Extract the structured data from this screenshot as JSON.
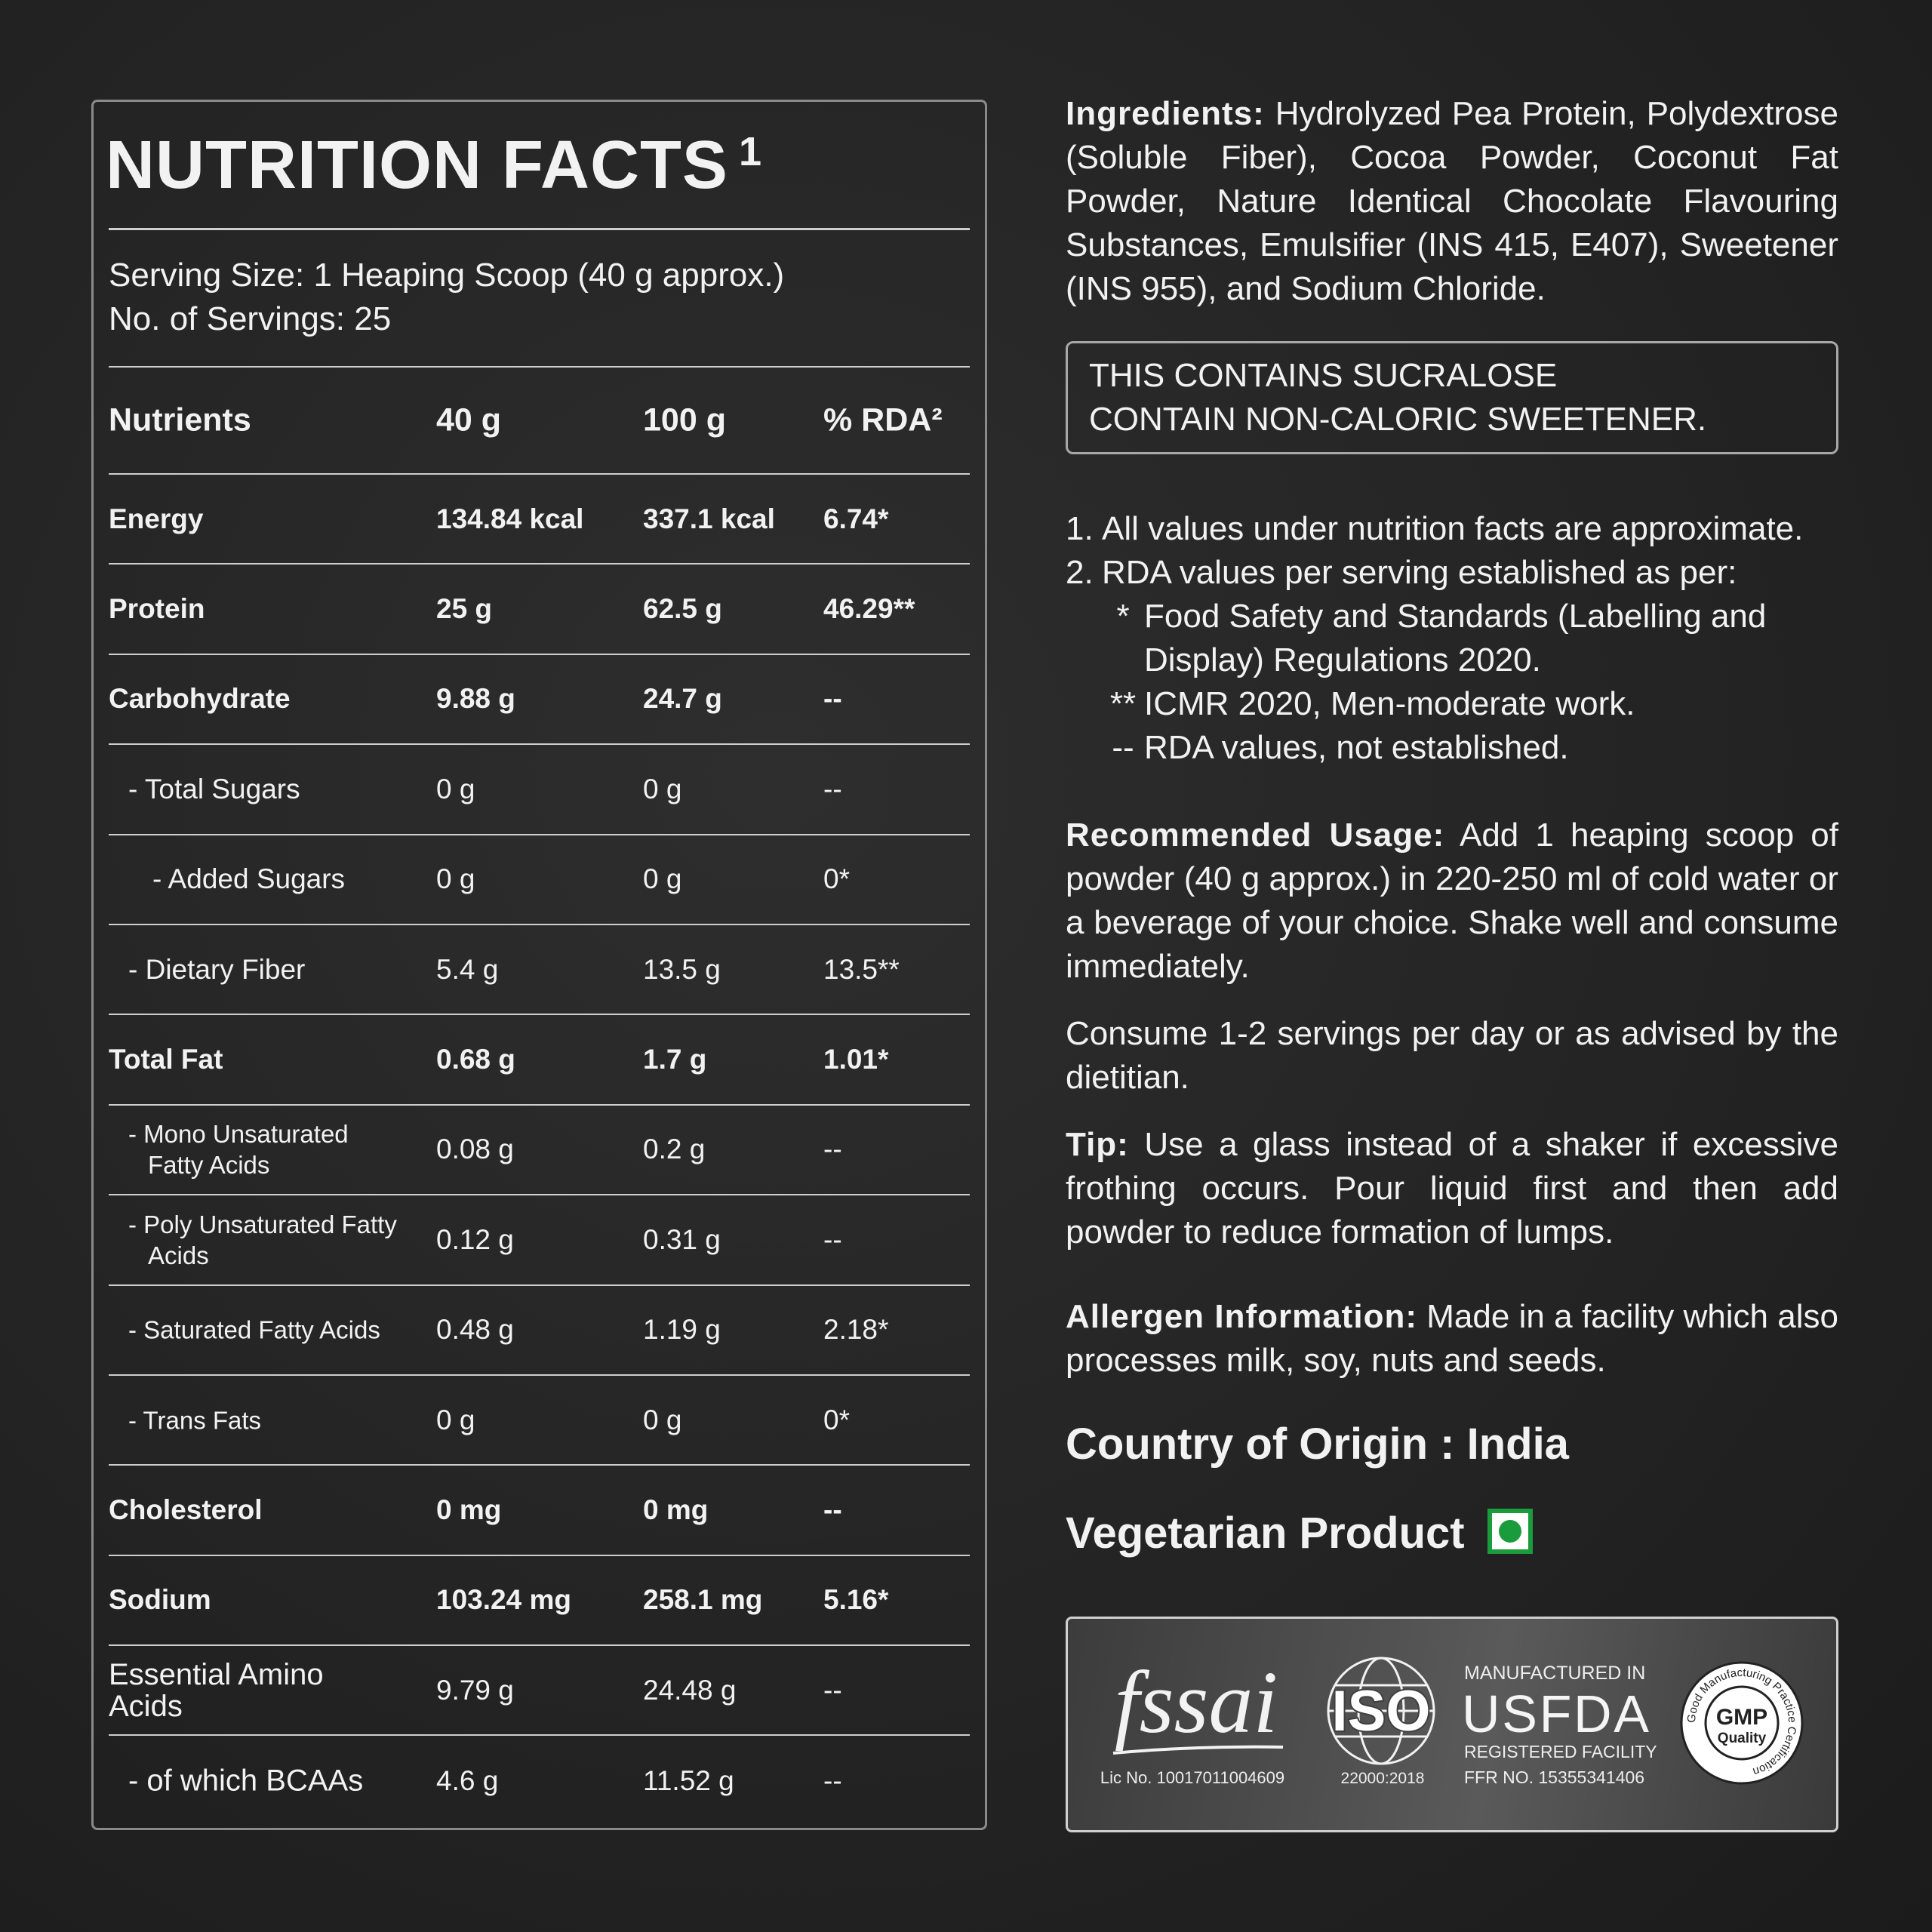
{
  "nutrition": {
    "title": "NUTRITION FACTS",
    "title_note": "1",
    "serving_size": "Serving Size: 1 Heaping Scoop (40 g approx.)",
    "servings": "No. of Servings: 25",
    "header": [
      "Nutrients",
      "40 g",
      "100 g",
      "% RDA²"
    ],
    "rows": [
      [
        "Energy",
        "134.84 kcal",
        "337.1 kcal",
        "6.74*"
      ],
      [
        "Protein",
        "25 g",
        "62.5 g",
        "46.29**"
      ],
      [
        "Carbohydrate",
        "9.88 g",
        "24.7 g",
        "--"
      ],
      [
        "- Total Sugars",
        "0 g",
        "0 g",
        "--"
      ],
      [
        "- Added Sugars",
        "0 g",
        "0 g",
        "0*"
      ],
      [
        "- Dietary Fiber",
        "5.4 g",
        "13.5 g",
        "13.5**"
      ],
      [
        "Total Fat",
        "0.68 g",
        "1.7 g",
        "1.01*"
      ],
      [
        "- Mono Unsaturated Fatty Acids",
        "0.08 g",
        "0.2 g",
        "--"
      ],
      [
        "- Poly Unsaturated Fatty Acids",
        "0.12 g",
        "0.31 g",
        "--"
      ],
      [
        "- Saturated Fatty Acids",
        "0.48 g",
        "1.19 g",
        "2.18*"
      ],
      [
        "- Trans Fats",
        "0 g",
        "0 g",
        "0*"
      ],
      [
        "Cholesterol",
        "0 mg",
        "0 mg",
        "--"
      ],
      [
        "Sodium",
        "103.24 mg",
        "258.1 mg",
        "5.16*"
      ],
      [
        "Essential Amino Acids",
        "9.79 g",
        "24.48 g",
        "--"
      ],
      [
        "- of which BCAAs",
        "4.6 g",
        "11.52 g",
        "--"
      ]
    ]
  },
  "info": {
    "ingredients": {
      "label": "Ingredients:",
      "text": "Hydrolyzed Pea Protein, Polydextrose (Soluble Fiber), Cocoa Powder, Coconut Fat Powder, Nature Identical Chocolate Flavouring Substances, Emulsifier (INS 415, E407), Sweetener (INS 955), and Sodium Chloride."
    },
    "warning": [
      "THIS CONTAINS SUCRALOSE",
      "CONTAIN NON-CALORIC SWEETENER."
    ],
    "notes": [
      {
        "marker": "1.",
        "text": "All values under nutrition facts are approximate."
      },
      {
        "marker": "2.",
        "text": "RDA values per serving established as per:"
      }
    ],
    "rda_sources": [
      {
        "marker": "*",
        "text": "Food Safety and Standards (Labelling and Display) Regulations 2020."
      },
      {
        "marker": "**",
        "text": "ICMR 2020, Men-moderate work."
      },
      {
        "marker": "--",
        "text": "RDA values, not established."
      }
    ],
    "usage": {
      "label": "Recommended Usage:",
      "text": "Add 1 heaping scoop of powder (40 g approx.) in 220-250 ml of cold water or a beverage of your choice. Shake well and consume immediately."
    },
    "servings_advice": "Consume 1-2 servings per day or as advised by the dietitian.",
    "tip": {
      "label": "Tip:",
      "text": "Use a glass instead of a shaker if excessive frothing occurs. Pour liquid first and then add powder to reduce formation of lumps."
    },
    "allergen": {
      "label": "Allergen Information:",
      "text": "Made in a facility which also processes milk, soy, nuts and seeds."
    },
    "origin": "Country of Origin : India",
    "vegetarian": "Vegetarian Product"
  },
  "certifications": {
    "fssai": {
      "logo": "fssai",
      "license": "Lic No. 10017011004609"
    },
    "iso": {
      "logo": "ISO",
      "standard": "22000:2018"
    },
    "usfda": {
      "top": "MANUFACTURED IN",
      "logo": "USFDA",
      "sub": "REGISTERED FACILITY",
      "ffr": "FFR NO. 15355341406"
    },
    "gmp": {
      "logo": "GMP",
      "sub": "Quality",
      "ring": "Good Manufacturing Practice Certification"
    }
  }
}
